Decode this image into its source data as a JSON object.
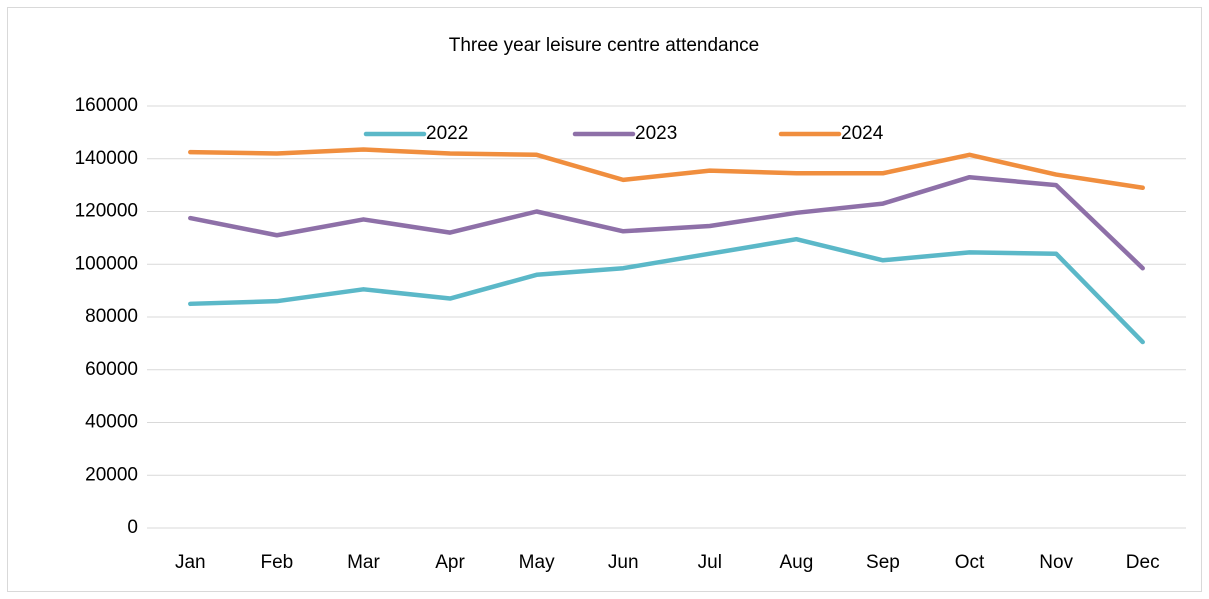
{
  "chart_data": {
    "type": "line",
    "title": "Three year leisure centre attendance",
    "categories": [
      "Jan",
      "Feb",
      "Mar",
      "Apr",
      "May",
      "Jun",
      "Jul",
      "Aug",
      "Sep",
      "Oct",
      "Nov",
      "Dec"
    ],
    "series": [
      {
        "name": "2022",
        "color": "#5bb8c8",
        "values": [
          85000,
          86000,
          90500,
          87000,
          96000,
          98500,
          104000,
          109500,
          101500,
          104500,
          104000,
          70500
        ]
      },
      {
        "name": "2023",
        "color": "#8e70a8",
        "values": [
          117500,
          111000,
          117000,
          112000,
          120000,
          112500,
          114500,
          119500,
          123000,
          133000,
          130000,
          98500
        ]
      },
      {
        "name": "2024",
        "color": "#f08e3e",
        "values": [
          142500,
          142000,
          143500,
          142000,
          141500,
          132000,
          135500,
          134500,
          134500,
          141500,
          134000,
          129000
        ]
      }
    ],
    "ylim": [
      0,
      160000
    ],
    "yticks": [
      0,
      20000,
      40000,
      60000,
      80000,
      100000,
      120000,
      140000,
      160000
    ],
    "grid": true,
    "legend": "top"
  }
}
